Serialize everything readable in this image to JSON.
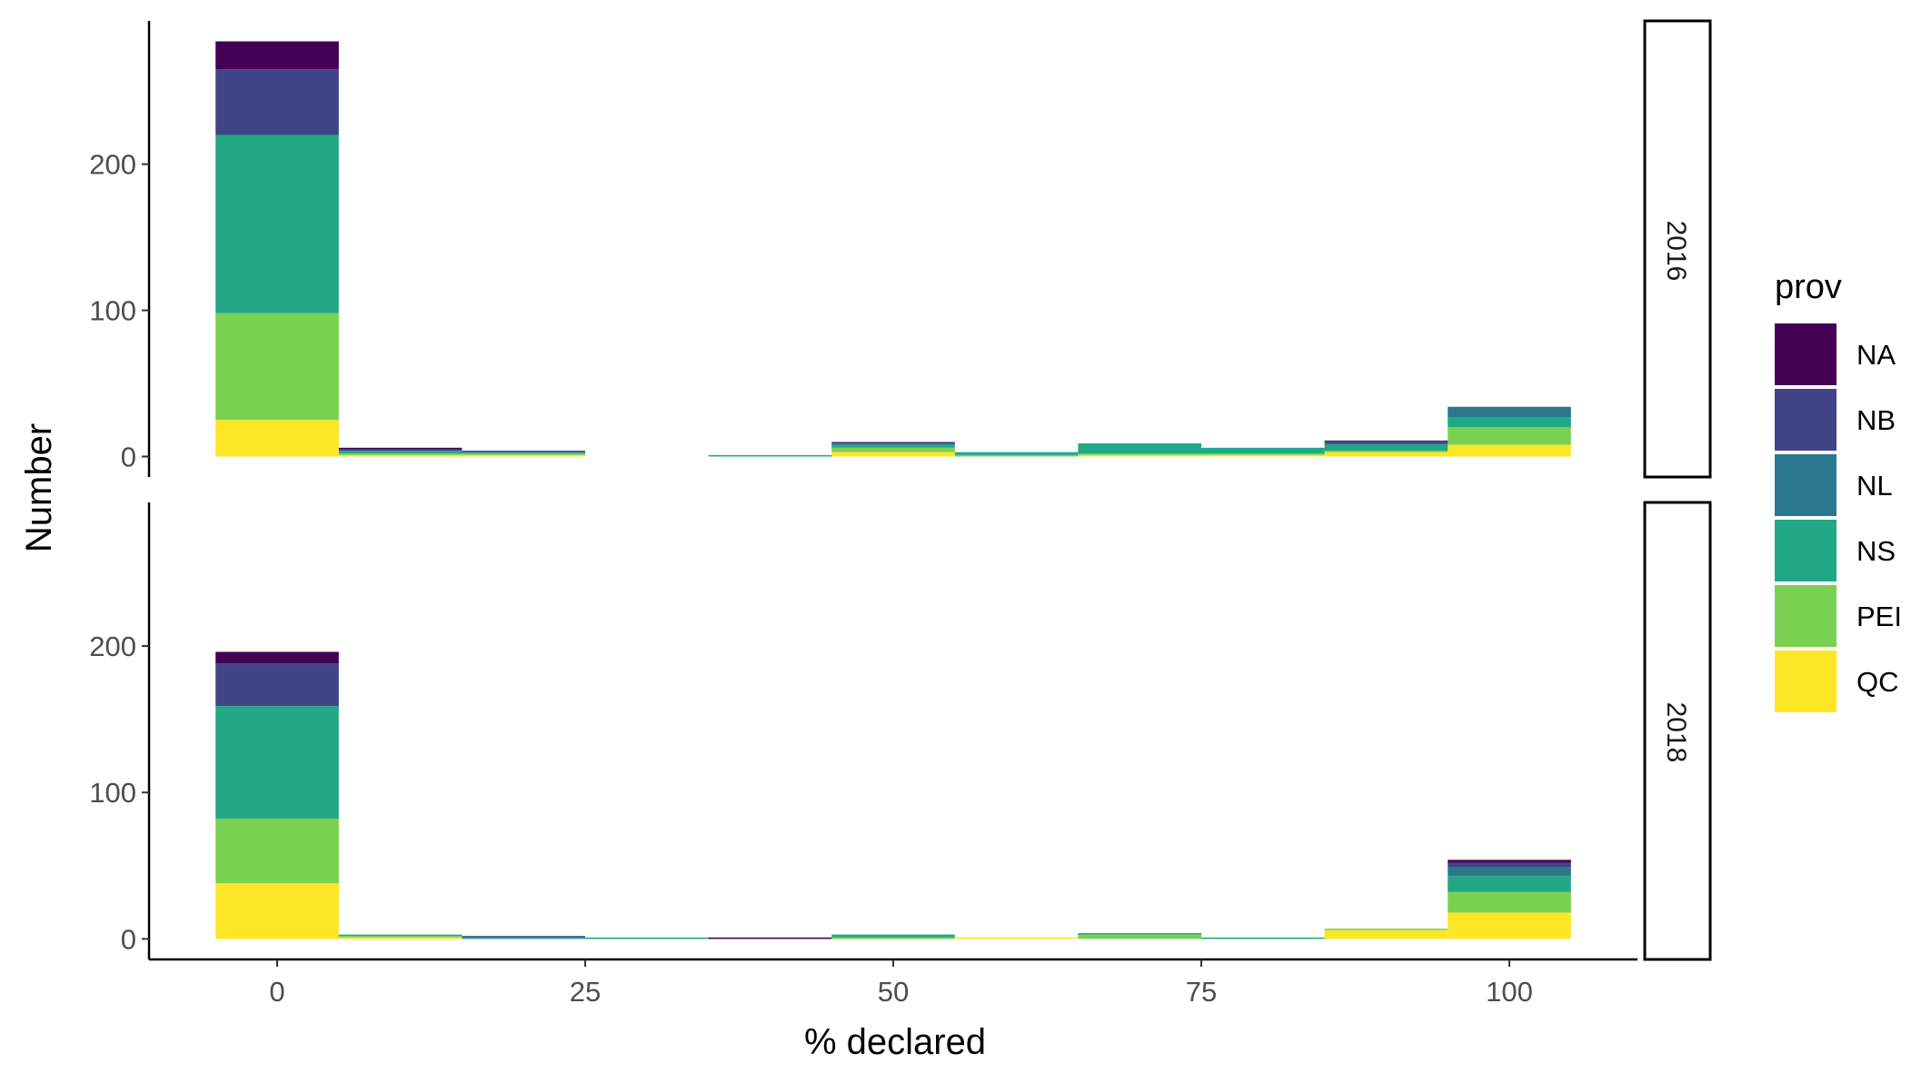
{
  "chart_data": {
    "type": "bar",
    "stacked": true,
    "xlabel": "% declared",
    "ylabel": "Number",
    "x_ticks": [
      0,
      25,
      50,
      75,
      100
    ],
    "y_ticks": [
      0,
      100,
      200
    ],
    "xlim": [
      -10.4,
      110.4
    ],
    "ylim": [
      -14,
      298
    ],
    "bin_width": 10,
    "bins": [
      0,
      10,
      20,
      30,
      40,
      50,
      60,
      70,
      80,
      90,
      100
    ],
    "legend": {
      "title": "prov",
      "position": "right",
      "entries": [
        {
          "name": "NA",
          "color": "#440154"
        },
        {
          "name": "NB",
          "color": "#414487"
        },
        {
          "name": "NL",
          "color": "#2a788e"
        },
        {
          "name": "NS",
          "color": "#22a884"
        },
        {
          "name": "PEI",
          "color": "#7ad151"
        },
        {
          "name": "QC",
          "color": "#fde725"
        }
      ]
    },
    "facets": [
      {
        "label": "2016",
        "series": [
          {
            "name": "QC",
            "values": [
              25,
              1,
              1,
              0,
              0,
              3,
              0,
              1,
              1,
              3,
              8
            ]
          },
          {
            "name": "PEI",
            "values": [
              73,
              1,
              1,
              0,
              0,
              3,
              1,
              1,
              1,
              1,
              12
            ]
          },
          {
            "name": "NS",
            "values": [
              122,
              2,
              1,
              0,
              1,
              2,
              2,
              7,
              4,
              4,
              7
            ]
          },
          {
            "name": "NL",
            "values": [
              0,
              0,
              0,
              0,
              0,
              1,
              0,
              0,
              0,
              1,
              7
            ]
          },
          {
            "name": "NB",
            "values": [
              45,
              1,
              1,
              0,
              0,
              1,
              0,
              0,
              0,
              2,
              0
            ]
          },
          {
            "name": "NA",
            "values": [
              19,
              1,
              0,
              0,
              0,
              0,
              0,
              0,
              0,
              0,
              0
            ]
          }
        ]
      },
      {
        "label": "2018",
        "series": [
          {
            "name": "QC",
            "values": [
              38,
              1,
              0,
              0,
              0,
              0,
              1,
              0,
              0,
              6,
              18
            ]
          },
          {
            "name": "PEI",
            "values": [
              44,
              1,
              0,
              0,
              0,
              1,
              0,
              3,
              0,
              1,
              14
            ]
          },
          {
            "name": "NS",
            "values": [
              77,
              1,
              1,
              1,
              0,
              2,
              0,
              1,
              1,
              0,
              11
            ]
          },
          {
            "name": "NL",
            "values": [
              0,
              0,
              0,
              0,
              0,
              0,
              0,
              0,
              0,
              0,
              6
            ]
          },
          {
            "name": "NB",
            "values": [
              29,
              0,
              1,
              0,
              0,
              0,
              0,
              0,
              0,
              0,
              3
            ]
          },
          {
            "name": "NA",
            "values": [
              8,
              0,
              0,
              0,
              1,
              0,
              0,
              0,
              0,
              0,
              2
            ]
          }
        ]
      }
    ]
  }
}
